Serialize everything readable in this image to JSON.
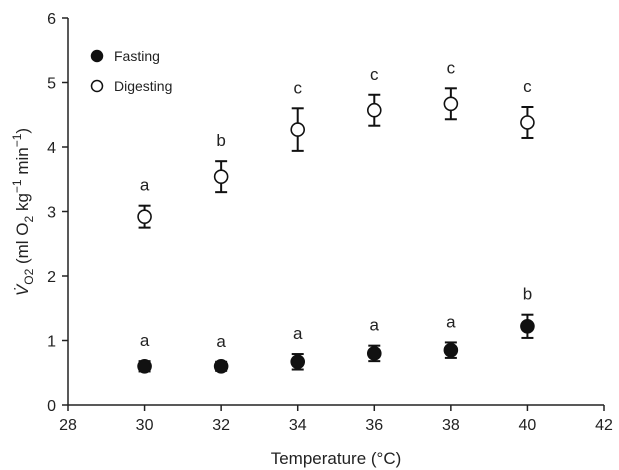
{
  "chart_data": {
    "type": "scatter",
    "xlabel": "Temperature (°C)",
    "ylabel_parts": {
      "v": "V̇",
      "v_sub": "O2",
      "open": " (ml O",
      "o2_sub": "2",
      "kg": " kg",
      "kg_sup": "−1",
      "min": " min",
      "min_sup": "−1",
      "close": ")"
    },
    "xlim": [
      28,
      42
    ],
    "ylim": [
      0,
      6
    ],
    "xticks": [
      "28",
      "30",
      "32",
      "34",
      "36",
      "38",
      "40",
      "42"
    ],
    "yticks": [
      "0",
      "1",
      "2",
      "3",
      "4",
      "5",
      "6"
    ],
    "grid": false,
    "legend": {
      "position": "top-left",
      "entries": [
        {
          "label": "Fasting",
          "marker": "filled-circle"
        },
        {
          "label": "Digesting",
          "marker": "open-circle"
        }
      ]
    },
    "series": [
      {
        "name": "Fasting",
        "marker": "filled",
        "x": [
          30,
          32,
          34,
          36,
          38,
          40
        ],
        "y": [
          0.6,
          0.6,
          0.67,
          0.8,
          0.85,
          1.22
        ],
        "err": [
          0.08,
          0.07,
          0.12,
          0.12,
          0.12,
          0.18
        ],
        "letters": [
          "a",
          "a",
          "a",
          "a",
          "a",
          "b"
        ]
      },
      {
        "name": "Digesting",
        "marker": "open",
        "x": [
          30,
          32,
          34,
          36,
          38,
          40
        ],
        "y": [
          2.92,
          3.54,
          4.27,
          4.57,
          4.67,
          4.38
        ],
        "err": [
          0.17,
          0.24,
          0.33,
          0.24,
          0.24,
          0.24
        ],
        "letters": [
          "a",
          "b",
          "c",
          "c",
          "c",
          "c"
        ]
      }
    ]
  },
  "colors": {
    "axis": "#222222",
    "marker_fill": "#111111",
    "open_fill": "#ffffff"
  }
}
